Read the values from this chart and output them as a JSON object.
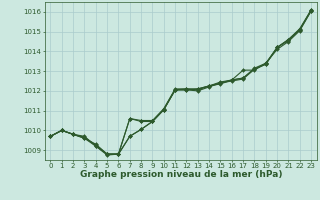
{
  "xlabel": "Graphe pression niveau de la mer (hPa)",
  "x": [
    0,
    1,
    2,
    3,
    4,
    5,
    6,
    7,
    8,
    9,
    10,
    11,
    12,
    13,
    14,
    15,
    16,
    17,
    18,
    19,
    20,
    21,
    22,
    23
  ],
  "lines": [
    [
      1009.7,
      1010.0,
      1009.8,
      1009.7,
      1009.2,
      1008.8,
      1008.8,
      1010.6,
      1010.5,
      1010.5,
      1011.1,
      1012.1,
      1012.1,
      1012.1,
      1012.25,
      1012.35,
      1012.55,
      1013.05,
      1013.05,
      1013.4,
      1014.1,
      1014.5,
      1015.05,
      1016.05
    ],
    [
      1009.7,
      1010.0,
      1009.8,
      1009.65,
      1009.25,
      1008.8,
      1008.8,
      1010.6,
      1010.45,
      1010.45,
      1011.05,
      1012.05,
      1012.05,
      1012.1,
      1012.25,
      1012.4,
      1012.55,
      1012.65,
      1013.1,
      1013.35,
      1014.2,
      1014.55,
      1015.1,
      1016.05
    ],
    [
      1009.7,
      1010.0,
      1009.8,
      1009.6,
      1009.3,
      1008.8,
      1008.8,
      1009.7,
      1010.05,
      1010.45,
      1011.05,
      1012.05,
      1012.1,
      1012.05,
      1012.25,
      1012.45,
      1012.55,
      1012.65,
      1013.15,
      1013.4,
      1014.2,
      1014.6,
      1015.15,
      1016.1
    ],
    [
      1009.7,
      1010.0,
      1009.8,
      1009.6,
      1009.2,
      1008.75,
      1008.8,
      1009.7,
      1010.05,
      1010.45,
      1011.05,
      1012.05,
      1012.05,
      1012.0,
      1012.2,
      1012.4,
      1012.5,
      1012.6,
      1013.1,
      1013.35,
      1014.2,
      1014.6,
      1015.1,
      1016.1
    ]
  ],
  "ylim": [
    1008.5,
    1016.5
  ],
  "yticks": [
    1009,
    1010,
    1011,
    1012,
    1013,
    1014,
    1015,
    1016
  ],
  "xlim": [
    -0.5,
    23.5
  ],
  "bg_color": "#cce8e0",
  "grid_color": "#aacccc",
  "line_color": "#2d5a2d",
  "marker": "D",
  "markersize": 2.0,
  "linewidth": 0.8,
  "tick_label_fontsize": 5.0,
  "xlabel_fontsize": 6.5
}
